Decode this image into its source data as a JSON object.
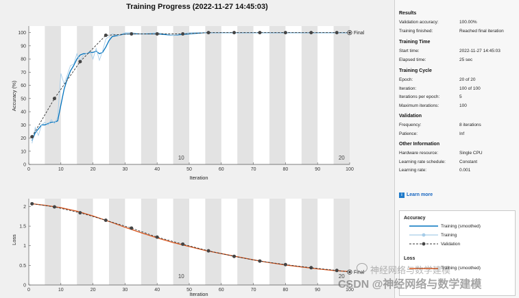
{
  "title": "Training Progress (2022-11-27 14:45:03)",
  "accuracy_plot": {
    "ylabel": "Accuracy (%)",
    "xlabel": "Iteration",
    "x_ticks": [
      "0",
      "10",
      "20",
      "30",
      "40",
      "50",
      "60",
      "70",
      "80",
      "90",
      "100"
    ],
    "y_ticks": [
      "0",
      "10",
      "20",
      "30",
      "40",
      "50",
      "60",
      "70",
      "80",
      "90",
      "100"
    ],
    "epoch_labels": [
      "10",
      "20"
    ],
    "final_label": "Final"
  },
  "loss_plot": {
    "ylabel": "Loss",
    "xlabel": "Iteration",
    "x_ticks": [
      "0",
      "10",
      "20",
      "30",
      "40",
      "50",
      "60",
      "70",
      "80",
      "90",
      "100"
    ],
    "y_ticks": [
      "0",
      "0.5",
      "1",
      "1.5",
      "2"
    ],
    "epoch_labels": [
      "10",
      "20"
    ],
    "final_label": "Final"
  },
  "chart_data": [
    {
      "type": "line",
      "title": "",
      "xlabel": "Iteration",
      "ylabel": "Accuracy (%)",
      "xlim": [
        0,
        100
      ],
      "ylim": [
        0,
        105
      ],
      "epoch_shading": "alternating gray bands every 5 iterations",
      "series": [
        {
          "name": "Training (smoothed)",
          "color": "#0072bd",
          "x": [
            1,
            2,
            3,
            4,
            5,
            6,
            7,
            8,
            9,
            10,
            11,
            12,
            13,
            14,
            15,
            16,
            17,
            18,
            19,
            20,
            21,
            22,
            23,
            24,
            25,
            26,
            28,
            30,
            32,
            35,
            40,
            45,
            50,
            55,
            60,
            65,
            70,
            75,
            80,
            85,
            90,
            95,
            100
          ],
          "y": [
            18,
            24,
            27,
            30,
            30,
            31,
            32,
            32,
            33,
            45,
            57,
            65,
            71,
            75,
            80,
            83,
            84,
            84,
            85,
            85,
            86,
            84,
            85,
            89,
            94,
            97,
            98,
            99,
            99,
            99,
            99,
            98,
            99,
            100,
            100,
            100,
            100,
            100,
            100,
            100,
            100,
            100,
            100
          ]
        },
        {
          "name": "Training",
          "color": "#a6cce8",
          "x": [
            1,
            2,
            3,
            4,
            5,
            6,
            7,
            8,
            9,
            10,
            11,
            12,
            13,
            14,
            15,
            16,
            17,
            18,
            19,
            20,
            21,
            22,
            23,
            24,
            25,
            26,
            28,
            30,
            32,
            35,
            40,
            45,
            50,
            55,
            60,
            65,
            70,
            75,
            80,
            85,
            90,
            95,
            100
          ],
          "y": [
            16,
            28,
            22,
            30,
            32,
            30,
            34,
            31,
            36,
            69,
            61,
            68,
            75,
            76,
            84,
            78,
            83,
            84,
            86,
            80,
            88,
            79,
            86,
            95,
            97,
            99,
            98,
            100,
            100,
            99,
            100,
            98,
            100,
            100,
            100,
            100,
            100,
            100,
            100,
            100,
            100,
            100,
            100
          ]
        },
        {
          "name": "Validation",
          "color": "#333333",
          "x": [
            1,
            8,
            16,
            24,
            32,
            40,
            48,
            56,
            64,
            72,
            80,
            88,
            96,
            100
          ],
          "y": [
            21,
            50,
            78,
            98,
            99,
            99,
            99,
            100,
            100,
            100,
            100,
            100,
            100,
            100
          ]
        }
      ]
    },
    {
      "type": "line",
      "title": "",
      "xlabel": "Iteration",
      "ylabel": "Loss",
      "xlim": [
        0,
        100
      ],
      "ylim": [
        0,
        2.2
      ],
      "epoch_shading": "alternating gray bands every 5 iterations",
      "series": [
        {
          "name": "Training (smoothed)",
          "color": "#d95319",
          "x": [
            1,
            5,
            10,
            15,
            20,
            25,
            30,
            35,
            40,
            45,
            50,
            55,
            60,
            65,
            70,
            75,
            80,
            85,
            90,
            95,
            100
          ],
          "y": [
            2.07,
            2.03,
            1.97,
            1.88,
            1.76,
            1.62,
            1.47,
            1.33,
            1.2,
            1.08,
            0.98,
            0.88,
            0.8,
            0.72,
            0.64,
            0.57,
            0.51,
            0.46,
            0.41,
            0.37,
            0.34
          ]
        },
        {
          "name": "Validation",
          "color": "#333333",
          "x": [
            1,
            8,
            16,
            24,
            32,
            40,
            48,
            56,
            64,
            72,
            80,
            88,
            96,
            100
          ],
          "y": [
            2.07,
            1.99,
            1.84,
            1.65,
            1.45,
            1.22,
            1.04,
            0.87,
            0.73,
            0.61,
            0.52,
            0.44,
            0.37,
            0.33
          ]
        }
      ]
    }
  ],
  "panel": {
    "results": {
      "title": "Results",
      "rows": [
        {
          "k": "Validation accuracy:",
          "v": "100.00%"
        },
        {
          "k": "Training finished:",
          "v": "Reached final iteration"
        }
      ]
    },
    "training_time": {
      "title": "Training Time",
      "rows": [
        {
          "k": "Start time:",
          "v": "2022-11-27 14:45:03"
        },
        {
          "k": "Elapsed time:",
          "v": "25 sec"
        }
      ]
    },
    "training_cycle": {
      "title": "Training Cycle",
      "rows": [
        {
          "k": "Epoch:",
          "v": "20 of 20"
        },
        {
          "k": "Iteration:",
          "v": "100 of 100"
        },
        {
          "k": "Iterations per epoch:",
          "v": "5"
        },
        {
          "k": "Maximum iterations:",
          "v": "100"
        }
      ]
    },
    "validation": {
      "title": "Validation",
      "rows": [
        {
          "k": "Frequency:",
          "v": "8 iterations"
        },
        {
          "k": "Patience:",
          "v": "Inf"
        }
      ]
    },
    "other": {
      "title": "Other Information",
      "rows": [
        {
          "k": "Hardware resource:",
          "v": "Single CPU"
        },
        {
          "k": "Learning rate schedule:",
          "v": "Constant"
        },
        {
          "k": "Learning rate:",
          "v": "0.001"
        }
      ]
    },
    "learn_more": "Learn more",
    "legend": {
      "accuracy_title": "Accuracy",
      "accuracy_items": [
        "Training (smoothed)",
        "Training",
        "Validation"
      ],
      "loss_title": "Loss",
      "loss_items": [
        "Training (smoothed)"
      ]
    }
  },
  "watermark": {
    "text": "CSDN @神经网络与数学建模",
    "text2": "神经网络与数学建模"
  }
}
